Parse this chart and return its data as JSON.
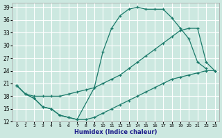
{
  "xlabel": "Humidex (Indice chaleur)",
  "bg_color": "#cce8e0",
  "grid_color": "#ffffff",
  "line_color": "#1a7a6a",
  "xlim": [
    -0.5,
    23.5
  ],
  "ylim": [
    12,
    40
  ],
  "yticks": [
    12,
    15,
    18,
    21,
    24,
    27,
    30,
    33,
    36,
    39
  ],
  "xticks": [
    0,
    1,
    2,
    3,
    4,
    5,
    6,
    7,
    8,
    9,
    10,
    11,
    12,
    13,
    14,
    15,
    16,
    17,
    18,
    19,
    20,
    21,
    22,
    23
  ],
  "curve_top_x": [
    0,
    1,
    2,
    3,
    4,
    5,
    6,
    7,
    9,
    10,
    11,
    12,
    13,
    14,
    15,
    16,
    17,
    18,
    19,
    20,
    21,
    22
  ],
  "curve_top_y": [
    20.5,
    18.5,
    17.5,
    15.5,
    15,
    13.5,
    13,
    12.5,
    20,
    28.5,
    34,
    37,
    38.5,
    39,
    38.5,
    38.5,
    38.5,
    36.5,
    34,
    31.5,
    26,
    24.5
  ],
  "curve_mid_x": [
    0,
    1,
    2,
    3,
    4,
    5,
    6,
    7,
    8,
    9,
    10,
    11,
    12,
    13,
    14,
    15,
    16,
    17,
    18,
    19,
    20,
    21,
    22,
    23
  ],
  "curve_mid_y": [
    20.5,
    18.5,
    18,
    18,
    18,
    18,
    18.5,
    19,
    19.5,
    20,
    21,
    22,
    23,
    24.5,
    26,
    27.5,
    29,
    30.5,
    32,
    33.5,
    34,
    34,
    26,
    24
  ],
  "curve_bot_x": [
    0,
    1,
    2,
    3,
    4,
    5,
    6,
    7,
    8,
    9,
    10,
    11,
    12,
    13,
    14,
    15,
    16,
    17,
    18,
    19,
    20,
    21,
    22,
    23
  ],
  "curve_bot_y": [
    20.5,
    18.5,
    17.5,
    15.5,
    15,
    13.5,
    13,
    12.5,
    12.5,
    13,
    14,
    15,
    16,
    17,
    18,
    19,
    20,
    21,
    22,
    22.5,
    23,
    23.5,
    24,
    24
  ]
}
